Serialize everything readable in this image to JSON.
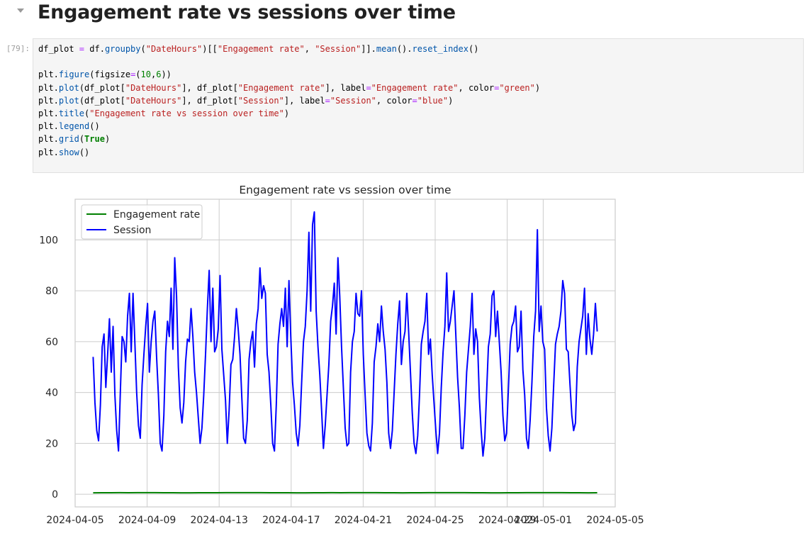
{
  "notebook": {
    "heading": "Engagement rate vs sessions over time",
    "cell_prompt": "[79]:",
    "code_lines": [
      "df_plot = df.groupby(\"DateHours\")[[\"Engagement rate\", \"Session\"]].mean().reset_index()",
      "",
      "plt.figure(figsize=(10,6))",
      "plt.plot(df_plot[\"DateHours\"], df_plot[\"Engagement rate\"], label=\"Engagement rate\", color=\"green\")",
      "plt.plot(df_plot[\"DateHours\"], df_plot[\"Session\"], label=\"Session\", color=\"blue\")",
      "plt.title(\"Engagement rate vs session over time\")",
      "plt.legend()",
      "plt.grid(True)",
      "plt.show()"
    ]
  },
  "chart_data": {
    "type": "line",
    "title": "Engagement rate vs session over time",
    "xlabel": "",
    "ylabel": "",
    "x_start": "2024-04-06",
    "x_end": "2024-05-04",
    "xlim": [
      "2024-04-05",
      "2024-05-05"
    ],
    "ylim": [
      -5,
      116
    ],
    "grid": true,
    "legend_position": "top-left",
    "x_ticks": [
      "2024-04-05",
      "2024-04-09",
      "2024-04-13",
      "2024-04-17",
      "2024-04-21",
      "2024-04-25",
      "2024-04-29",
      "2024-05-01",
      "2024-05-05"
    ],
    "x_tick_labels": [
      "2024-04-05",
      "2024-04-09",
      "2024-04-13",
      "2024-04-17",
      "2024-04-21",
      "2024-04-25",
      "2024-04-29",
      "2024-05-01",
      "2024-05-05"
    ],
    "y_ticks": [
      0,
      20,
      40,
      60,
      80,
      100
    ],
    "series": [
      {
        "name": "Engagement rate",
        "color": "#008000",
        "values": [
          0.55,
          0.56,
          0.58,
          0.6,
          0.59,
          0.6,
          0.6,
          0.6,
          0.58,
          0.57,
          0.55,
          0.55,
          0.56,
          0.57,
          0.59,
          0.6,
          0.61,
          0.62,
          0.61,
          0.6,
          0.58,
          0.57,
          0.56,
          0.55,
          0.55,
          0.56,
          0.58,
          0.6,
          0.59,
          0.61,
          0.62,
          0.61,
          0.6,
          0.58,
          0.56,
          0.55,
          0.56,
          0.57,
          0.6,
          0.61,
          0.62,
          0.62,
          0.61,
          0.58,
          0.57,
          0.55,
          0.55,
          0.56,
          0.58,
          0.6,
          0.61,
          0.62,
          0.61,
          0.6,
          0.58,
          0.56,
          0.55,
          0.56
        ]
      },
      {
        "name": "Session",
        "color": "#0000ff",
        "values": [
          54,
          36,
          25,
          21,
          35,
          58,
          63,
          42,
          55,
          69,
          48,
          66,
          39,
          25,
          17,
          40,
          62,
          60,
          52,
          70,
          79,
          56,
          79,
          60,
          40,
          27,
          22,
          43,
          55,
          66,
          75,
          48,
          60,
          68,
          72,
          54,
          39,
          20,
          17,
          31,
          56,
          68,
          62,
          81,
          57,
          93,
          78,
          50,
          34,
          28,
          36,
          52,
          61,
          60,
          73,
          62,
          48,
          40,
          30,
          20,
          26,
          39,
          55,
          73,
          88,
          60,
          81,
          56,
          58,
          65,
          86,
          57,
          47,
          37,
          20,
          33,
          51,
          53,
          62,
          73,
          65,
          55,
          38,
          22,
          20,
          29,
          53,
          60,
          64,
          50,
          67,
          73,
          89,
          77,
          82,
          79,
          55,
          48,
          35,
          20,
          17,
          35,
          59,
          67,
          73,
          66,
          81,
          58,
          84,
          62,
          44,
          35,
          24,
          19,
          27,
          44,
          60,
          66,
          80,
          103,
          72,
          106,
          111,
          72,
          58,
          47,
          33,
          18,
          27,
          39,
          51,
          68,
          74,
          83,
          63,
          93,
          78,
          58,
          42,
          26,
          19,
          20,
          48,
          60,
          64,
          79,
          71,
          70,
          80,
          55,
          39,
          24,
          19,
          17,
          28,
          52,
          58,
          67,
          60,
          74,
          64,
          57,
          44,
          24,
          18,
          25,
          40,
          55,
          67,
          76,
          51,
          60,
          64,
          79,
          64,
          48,
          32,
          20,
          16,
          23,
          39,
          59,
          64,
          68,
          79,
          55,
          61,
          47,
          36,
          25,
          16,
          24,
          42,
          56,
          66,
          87,
          64,
          68,
          74,
          80,
          63,
          46,
          34,
          18,
          18,
          31,
          48,
          57,
          66,
          79,
          55,
          65,
          60,
          38,
          25,
          15,
          22,
          40,
          58,
          63,
          78,
          80,
          62,
          72,
          60,
          48,
          31,
          21,
          24,
          41,
          59,
          66,
          68,
          74,
          56,
          58,
          72,
          49,
          39,
          22,
          18,
          29,
          44,
          62,
          72,
          104,
          64,
          74,
          60,
          57,
          34,
          23,
          17,
          26,
          43,
          59,
          63,
          66,
          72,
          84,
          79,
          57,
          56,
          43,
          31,
          25,
          28,
          50,
          60,
          65,
          70,
          81,
          55,
          71,
          61,
          55,
          63,
          75,
          64
        ]
      }
    ]
  }
}
